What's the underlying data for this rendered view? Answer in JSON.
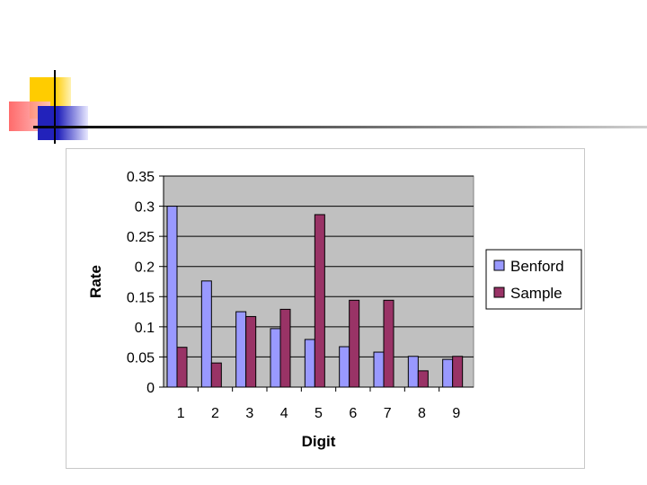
{
  "colors": {
    "plot_bg": "#c0c0c0",
    "gridline": "#000000",
    "benford": "#9999ff",
    "sample": "#993366",
    "deco_yellow": "#ffcc00",
    "deco_red": "#ff5a5a",
    "deco_blue": "#3333cc"
  },
  "chart_data": {
    "type": "bar",
    "categories": [
      "1",
      "2",
      "3",
      "4",
      "5",
      "6",
      "7",
      "8",
      "9"
    ],
    "series": [
      {
        "name": "Benford",
        "values": [
          0.3,
          0.176,
          0.125,
          0.097,
          0.079,
          0.067,
          0.058,
          0.051,
          0.046
        ]
      },
      {
        "name": "Sample",
        "values": [
          0.066,
          0.04,
          0.117,
          0.129,
          0.286,
          0.144,
          0.144,
          0.027,
          0.051
        ]
      }
    ],
    "title": "",
    "xlabel": "Digit",
    "ylabel": "Rate",
    "ylim": [
      0,
      0.35
    ],
    "yticks": [
      "0",
      "0.05",
      "0.1",
      "0.15",
      "0.2",
      "0.25",
      "0.3",
      "0.35"
    ],
    "grid": true,
    "legend": "right"
  }
}
